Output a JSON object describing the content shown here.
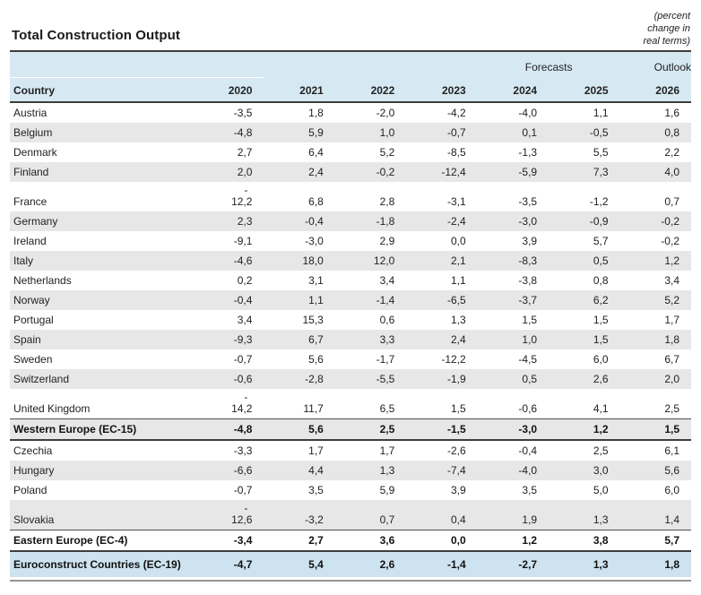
{
  "title": "Total Construction Output",
  "units_note": "(percent\nchange in\nreal terms)",
  "colors": {
    "header_blue": "#d6e9f3",
    "total_blue": "#cde3ef",
    "stripe_gray": "#e7e7e7",
    "rule_dark": "#3d3d3d"
  },
  "table": {
    "group_labels": {
      "forecasts": "Forecasts",
      "outlook": "Outlook"
    },
    "col_labels": [
      "Country",
      "2020",
      "2021",
      "2022",
      "2023",
      "2024",
      "2025",
      "2026"
    ],
    "rows": [
      {
        "name": "Austria",
        "kind": "country",
        "shaded": false,
        "values": [
          "-3,5",
          "1,8",
          "-2,0",
          "-4,2",
          "-4,0",
          "1,1",
          "1,6"
        ]
      },
      {
        "name": "Belgium",
        "kind": "country",
        "shaded": true,
        "values": [
          "-4,8",
          "5,9",
          "1,0",
          "-0,7",
          "0,1",
          "-0,5",
          "0,8"
        ]
      },
      {
        "name": "Denmark",
        "kind": "country",
        "shaded": false,
        "values": [
          "2,7",
          "6,4",
          "5,2",
          "-8,5",
          "-1,3",
          "5,5",
          "2,2"
        ]
      },
      {
        "name": "Finland",
        "kind": "country",
        "shaded": true,
        "values": [
          "2,0",
          "2,4",
          "-0,2",
          "-12,4",
          "-5,9",
          "7,3",
          "4,0"
        ]
      },
      {
        "name": "France",
        "kind": "country",
        "shaded": false,
        "values": [
          [
            "-",
            "12,2"
          ],
          "6,8",
          "2,8",
          "-3,1",
          "-3,5",
          "-1,2",
          "0,7"
        ]
      },
      {
        "name": "Germany",
        "kind": "country",
        "shaded": true,
        "values": [
          "2,3",
          "-0,4",
          "-1,8",
          "-2,4",
          "-3,0",
          "-0,9",
          "-0,2"
        ]
      },
      {
        "name": "Ireland",
        "kind": "country",
        "shaded": false,
        "values": [
          "-9,1",
          "-3,0",
          "2,9",
          "0,0",
          "3,9",
          "5,7",
          "-0,2"
        ]
      },
      {
        "name": "Italy",
        "kind": "country",
        "shaded": true,
        "values": [
          "-4,6",
          "18,0",
          "12,0",
          "2,1",
          "-8,3",
          "0,5",
          "1,2"
        ]
      },
      {
        "name": "Netherlands",
        "kind": "country",
        "shaded": false,
        "values": [
          "0,2",
          "3,1",
          "3,4",
          "1,1",
          "-3,8",
          "0,8",
          "3,4"
        ]
      },
      {
        "name": "Norway",
        "kind": "country",
        "shaded": true,
        "values": [
          "-0,4",
          "1,1",
          "-1,4",
          "-6,5",
          "-3,7",
          "6,2",
          "5,2"
        ]
      },
      {
        "name": "Portugal",
        "kind": "country",
        "shaded": false,
        "values": [
          "3,4",
          "15,3",
          "0,6",
          "1,3",
          "1,5",
          "1,5",
          "1,7"
        ]
      },
      {
        "name": "Spain",
        "kind": "country",
        "shaded": true,
        "values": [
          "-9,3",
          "6,7",
          "3,3",
          "2,4",
          "1,0",
          "1,5",
          "1,8"
        ]
      },
      {
        "name": "Sweden",
        "kind": "country",
        "shaded": false,
        "values": [
          "-0,7",
          "5,6",
          "-1,7",
          "-12,2",
          "-4,5",
          "6,0",
          "6,7"
        ]
      },
      {
        "name": "Switzerland",
        "kind": "country",
        "shaded": true,
        "values": [
          "-0,6",
          "-2,8",
          "-5,5",
          "-1,9",
          "0,5",
          "2,6",
          "2,0"
        ]
      },
      {
        "name": "United Kingdom",
        "kind": "country",
        "shaded": false,
        "values": [
          [
            "-",
            "14,2"
          ],
          "11,7",
          "6,5",
          "1,5",
          "-0,6",
          "4,1",
          "2,5"
        ]
      },
      {
        "name": "Western Europe (EC-15)",
        "kind": "subtotal",
        "shaded": true,
        "values": [
          "-4,8",
          "5,6",
          "2,5",
          "-1,5",
          "-3,0",
          "1,2",
          "1,5"
        ]
      },
      {
        "name": "Czechia",
        "kind": "country",
        "shaded": false,
        "values": [
          "-3,3",
          "1,7",
          "1,7",
          "-2,6",
          "-0,4",
          "2,5",
          "6,1"
        ]
      },
      {
        "name": "Hungary",
        "kind": "country",
        "shaded": true,
        "values": [
          "-6,6",
          "4,4",
          "1,3",
          "-7,4",
          "-4,0",
          "3,0",
          "5,6"
        ]
      },
      {
        "name": "Poland",
        "kind": "country",
        "shaded": false,
        "values": [
          "-0,7",
          "3,5",
          "5,9",
          "3,9",
          "3,5",
          "5,0",
          "6,0"
        ]
      },
      {
        "name": "Slovakia",
        "kind": "country",
        "shaded": true,
        "values": [
          [
            "-",
            "12,6"
          ],
          "-3,2",
          "0,7",
          "0,4",
          "1,9",
          "1,3",
          "1,4"
        ]
      },
      {
        "name": "Eastern Europe (EC-4)",
        "kind": "subtotal",
        "shaded": false,
        "values": [
          "-3,4",
          "2,7",
          "3,6",
          "0,0",
          "1,2",
          "3,8",
          "5,7"
        ]
      },
      {
        "name": "Euroconstruct Countries (EC-19)",
        "kind": "total",
        "shaded": false,
        "values": [
          "-4,7",
          "5,4",
          "2,6",
          "-1,4",
          "-2,7",
          "1,3",
          "1,8"
        ]
      }
    ]
  }
}
